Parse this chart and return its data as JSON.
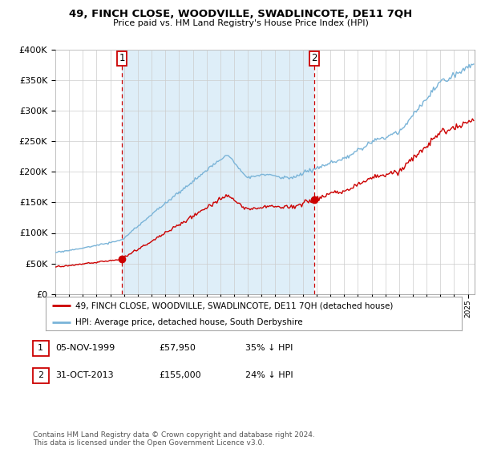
{
  "title": "49, FINCH CLOSE, WOODVILLE, SWADLINCOTE, DE11 7QH",
  "subtitle": "Price paid vs. HM Land Registry's House Price Index (HPI)",
  "legend_line1": "49, FINCH CLOSE, WOODVILLE, SWADLINCOTE, DE11 7QH (detached house)",
  "legend_line2": "HPI: Average price, detached house, South Derbyshire",
  "table_row1": [
    "1",
    "05-NOV-1999",
    "£57,950",
    "35% ↓ HPI"
  ],
  "table_row2": [
    "2",
    "31-OCT-2013",
    "£155,000",
    "24% ↓ HPI"
  ],
  "footnote": "Contains HM Land Registry data © Crown copyright and database right 2024.\nThis data is licensed under the Open Government Licence v3.0.",
  "sale1_x": 1999.85,
  "sale1_y": 57950,
  "sale2_x": 2013.83,
  "sale2_y": 155000,
  "vline1_x": 1999.85,
  "vline2_x": 2013.83,
  "ylim": [
    0,
    400000
  ],
  "xlim_start": 1995.0,
  "xlim_end": 2025.5,
  "hpi_color": "#7ab4d8",
  "sale_color": "#cc0000",
  "vline_color": "#cc0000",
  "shade_color": "#deeef8",
  "background_color": "#ffffff",
  "grid_color": "#cccccc"
}
